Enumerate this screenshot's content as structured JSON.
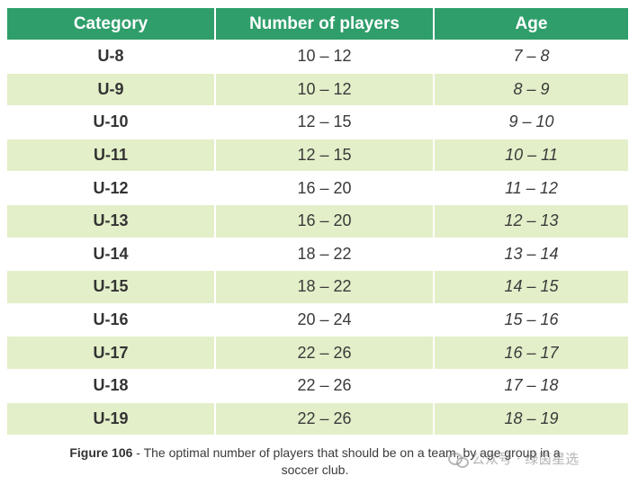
{
  "table": {
    "headers": [
      "Category",
      "Number of players",
      "Age"
    ],
    "rows": [
      {
        "category": "U-8",
        "players": "10 – 12",
        "age": "7 – 8"
      },
      {
        "category": "U-9",
        "players": "10 – 12",
        "age": "8 – 9"
      },
      {
        "category": "U-10",
        "players": "12 – 15",
        "age": "9 – 10"
      },
      {
        "category": "U-11",
        "players": "12 – 15",
        "age": "10 – 11"
      },
      {
        "category": "U-12",
        "players": "16 – 20",
        "age": "11 – 12"
      },
      {
        "category": "U-13",
        "players": "16 – 20",
        "age": "12 – 13"
      },
      {
        "category": "U-14",
        "players": "18 – 22",
        "age": "13 – 14"
      },
      {
        "category": "U-15",
        "players": "18 – 22",
        "age": "14 – 15"
      },
      {
        "category": "U-16",
        "players": "20 – 24",
        "age": "15 – 16"
      },
      {
        "category": "U-17",
        "players": "22 – 26",
        "age": "16 – 17"
      },
      {
        "category": "U-18",
        "players": "22 – 26",
        "age": "17 – 18"
      },
      {
        "category": "U-19",
        "players": "22 – 26",
        "age": "18 – 19"
      }
    ]
  },
  "caption": {
    "label": "Figure 106",
    "text": " - The optimal number of players that should be on a team, by age group in a soccer club."
  },
  "watermark": {
    "text": "公众号 · 绿茵星选",
    "icon": "wechat-icon"
  },
  "colors": {
    "header_bg": "#2f9e6b",
    "shaded_row": "#e3efc9"
  }
}
